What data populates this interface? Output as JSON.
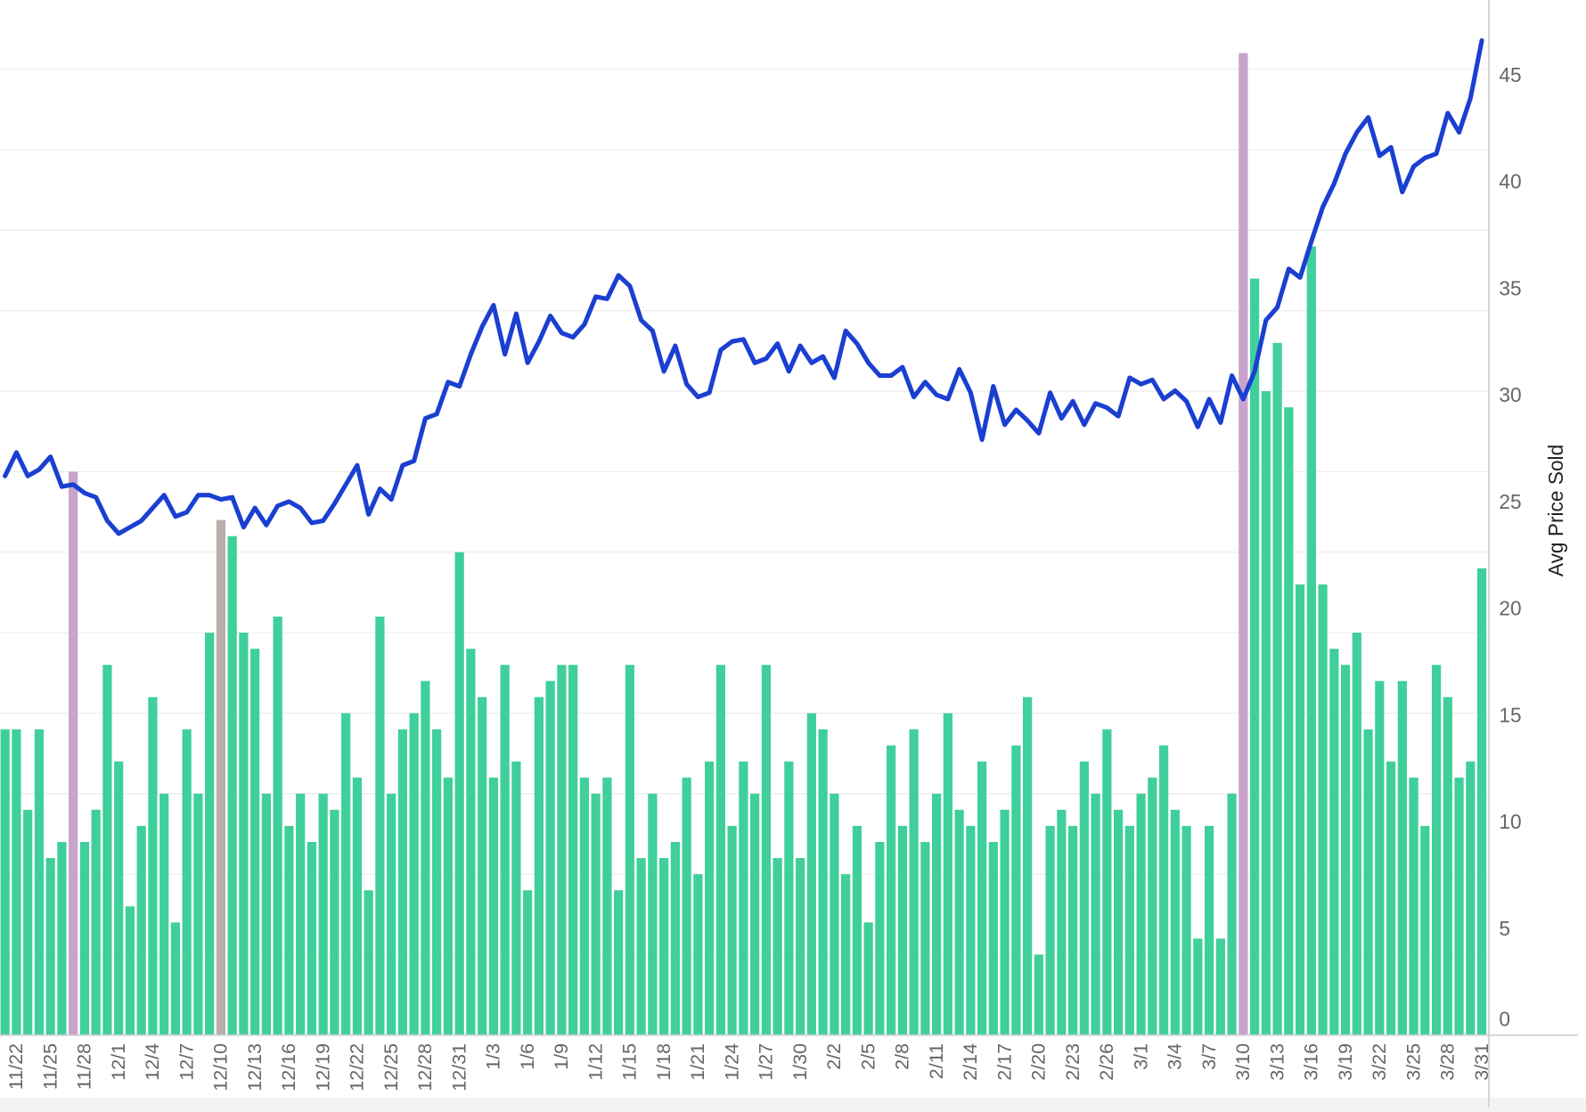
{
  "chart_data": {
    "type": "bar-line",
    "categories": [
      null,
      "11/22",
      null,
      null,
      "11/25",
      null,
      null,
      "11/28",
      null,
      null,
      "12/1",
      null,
      null,
      "12/4",
      null,
      null,
      "12/7",
      null,
      null,
      "12/10",
      null,
      null,
      "12/13",
      null,
      null,
      "12/16",
      null,
      null,
      "12/19",
      null,
      null,
      "12/22",
      null,
      null,
      "12/25",
      null,
      null,
      "12/28",
      null,
      null,
      "12/31",
      null,
      null,
      "1/3",
      null,
      null,
      "1/6",
      null,
      null,
      "1/9",
      null,
      null,
      "1/12",
      null,
      null,
      "1/15",
      null,
      null,
      "1/18",
      null,
      null,
      "1/21",
      null,
      null,
      "1/24",
      null,
      null,
      "1/27",
      null,
      null,
      "1/30",
      null,
      null,
      "2/2",
      null,
      null,
      "2/5",
      null,
      null,
      "2/8",
      null,
      null,
      "2/11",
      null,
      null,
      "2/14",
      null,
      null,
      "2/17",
      null,
      null,
      "2/20",
      null,
      null,
      "2/23",
      null,
      null,
      "2/26",
      null,
      null,
      "3/1",
      null,
      null,
      "3/4",
      null,
      null,
      "3/7",
      null,
      null,
      "3/10",
      null,
      null,
      "3/13",
      null,
      null,
      "3/16",
      null,
      null,
      "3/19",
      null,
      null,
      "3/22",
      null,
      null,
      "3/25",
      null,
      null,
      "3/28",
      null,
      null,
      "3/31"
    ],
    "series": [
      {
        "kind": "bar",
        "axis": "y",
        "color": "#3fcf9b",
        "colors": [
          "#3fcf9b",
          "#3fcf9b",
          "#3fcf9b",
          "#3fcf9b",
          "#3fcf9b",
          "#3fcf9b",
          "#c9a3cc",
          "#3fcf9b",
          "#3fcf9b",
          "#3fcf9b",
          "#3fcf9b",
          "#3fcf9b",
          "#3fcf9b",
          "#3fcf9b",
          "#3fcf9b",
          "#3fcf9b",
          "#3fcf9b",
          "#3fcf9b",
          "#3fcf9b",
          "#b8aeab",
          "#3fcf9b",
          "#3fcf9b",
          "#3fcf9b",
          "#3fcf9b",
          "#3fcf9b",
          "#3fcf9b",
          "#3fcf9b",
          "#3fcf9b",
          "#3fcf9b",
          "#3fcf9b",
          "#3fcf9b",
          "#3fcf9b",
          "#3fcf9b",
          "#3fcf9b",
          "#3fcf9b",
          "#3fcf9b",
          "#3fcf9b",
          "#3fcf9b",
          "#3fcf9b",
          "#3fcf9b",
          "#3fcf9b",
          "#3fcf9b",
          "#3fcf9b",
          "#3fcf9b",
          "#3fcf9b",
          "#3fcf9b",
          "#3fcf9b",
          "#3fcf9b",
          "#3fcf9b",
          "#3fcf9b",
          "#3fcf9b",
          "#3fcf9b",
          "#3fcf9b",
          "#3fcf9b",
          "#3fcf9b",
          "#3fcf9b",
          "#3fcf9b",
          "#3fcf9b",
          "#3fcf9b",
          "#3fcf9b",
          "#3fcf9b",
          "#3fcf9b",
          "#3fcf9b",
          "#3fcf9b",
          "#3fcf9b",
          "#3fcf9b",
          "#3fcf9b",
          "#3fcf9b",
          "#3fcf9b",
          "#3fcf9b",
          "#3fcf9b",
          "#3fcf9b",
          "#3fcf9b",
          "#3fcf9b",
          "#3fcf9b",
          "#3fcf9b",
          "#3fcf9b",
          "#3fcf9b",
          "#3fcf9b",
          "#3fcf9b",
          "#3fcf9b",
          "#3fcf9b",
          "#3fcf9b",
          "#3fcf9b",
          "#3fcf9b",
          "#3fcf9b",
          "#3fcf9b",
          "#3fcf9b",
          "#3fcf9b",
          "#3fcf9b",
          "#3fcf9b",
          "#3fcf9b",
          "#3fcf9b",
          "#3fcf9b",
          "#3fcf9b",
          "#3fcf9b",
          "#3fcf9b",
          "#3fcf9b",
          "#3fcf9b",
          "#3fcf9b",
          "#3fcf9b",
          "#3fcf9b",
          "#3fcf9b",
          "#3fcf9b",
          "#3fcf9b",
          "#3fcf9b",
          "#3fcf9b",
          "#3fcf9b",
          "#3fcf9b",
          "#c9a3cc",
          "#3fcf9b",
          "#3fcf9b",
          "#3fcf9b",
          "#3fcf9b",
          "#3fcf9b",
          "#3fcf9b",
          "#3fcf9b",
          "#3fcf9b",
          "#3fcf9b",
          "#3fcf9b",
          "#3fcf9b",
          "#3fcf9b",
          "#3fcf9b",
          "#3fcf9b",
          "#3fcf9b",
          "#3fcf9b",
          "#3fcf9b",
          "#3fcf9b",
          "#3fcf9b",
          "#3fcf9b",
          "#3fcf9b"
        ],
        "values": [
          19,
          19,
          14,
          19,
          11,
          12,
          35,
          12,
          14,
          23,
          17,
          8,
          13,
          21,
          15,
          7,
          19,
          15,
          25,
          32,
          31,
          25,
          24,
          15,
          26,
          13,
          15,
          12,
          15,
          14,
          20,
          16,
          9,
          26,
          15,
          19,
          20,
          22,
          19,
          16,
          30,
          24,
          21,
          16,
          23,
          17,
          9,
          21,
          22,
          23,
          23,
          16,
          15,
          16,
          9,
          23,
          11,
          15,
          11,
          12,
          16,
          10,
          17,
          23,
          13,
          17,
          15,
          23,
          11,
          17,
          11,
          20,
          19,
          15,
          10,
          13,
          7,
          12,
          18,
          13,
          19,
          12,
          15,
          20,
          14,
          13,
          17,
          12,
          14,
          18,
          21,
          5,
          13,
          14,
          13,
          17,
          15,
          19,
          14,
          13,
          15,
          16,
          18,
          14,
          13,
          6,
          13,
          6,
          15,
          61,
          47,
          40,
          43,
          39,
          28,
          49,
          28,
          24,
          23,
          25,
          19,
          22,
          17,
          22,
          16,
          13,
          23,
          21,
          16,
          17,
          29
        ]
      },
      {
        "kind": "line",
        "axis": "y2",
        "color": "#1a3fd1",
        "values": [
          26.2,
          27.3,
          26.2,
          26.5,
          27.1,
          25.7,
          25.8,
          25.4,
          25.2,
          24.1,
          23.5,
          23.8,
          24.1,
          24.7,
          25.3,
          24.3,
          24.5,
          25.3,
          25.3,
          25.1,
          25.2,
          23.8,
          24.7,
          23.9,
          24.8,
          25.0,
          24.7,
          24.0,
          24.1,
          24.9,
          25.8,
          26.7,
          24.4,
          25.6,
          25.1,
          26.7,
          26.9,
          28.9,
          29.1,
          30.6,
          30.4,
          31.9,
          33.2,
          34.2,
          31.9,
          33.8,
          31.5,
          32.5,
          33.7,
          32.9,
          32.7,
          33.3,
          34.6,
          34.5,
          35.6,
          35.1,
          33.5,
          33.0,
          31.1,
          32.3,
          30.5,
          29.9,
          30.1,
          32.1,
          32.5,
          32.6,
          31.5,
          31.7,
          32.4,
          31.1,
          32.3,
          31.5,
          31.8,
          30.8,
          33.0,
          32.4,
          31.5,
          30.9,
          30.9,
          31.3,
          29.9,
          30.6,
          30.0,
          29.8,
          31.2,
          30.1,
          27.9,
          30.4,
          28.6,
          29.3,
          28.8,
          28.2,
          30.1,
          28.9,
          29.7,
          28.6,
          29.6,
          29.4,
          29.0,
          30.8,
          30.5,
          30.7,
          29.8,
          30.2,
          29.7,
          28.5,
          29.8,
          28.7,
          30.9,
          29.8,
          31.1,
          33.5,
          34.1,
          35.9,
          35.5,
          37.2,
          38.8,
          39.9,
          41.3,
          42.3,
          43.0,
          41.2,
          41.6,
          39.5,
          40.7,
          41.1,
          41.3,
          43.2,
          42.3,
          43.9,
          46.6
        ]
      }
    ],
    "ylim": [
      0,
      64.3
    ],
    "yticks": [
      5,
      10,
      15,
      20,
      25,
      30,
      35,
      40,
      45,
      50,
      55,
      60
    ],
    "show_y_tick_labels": false,
    "y2_label": "Avg Price Sold",
    "y2lim": [
      0,
      48.5
    ],
    "y2ticks": [
      0,
      5,
      10,
      15,
      20,
      25,
      30,
      35,
      40,
      45
    ],
    "grid": true
  }
}
